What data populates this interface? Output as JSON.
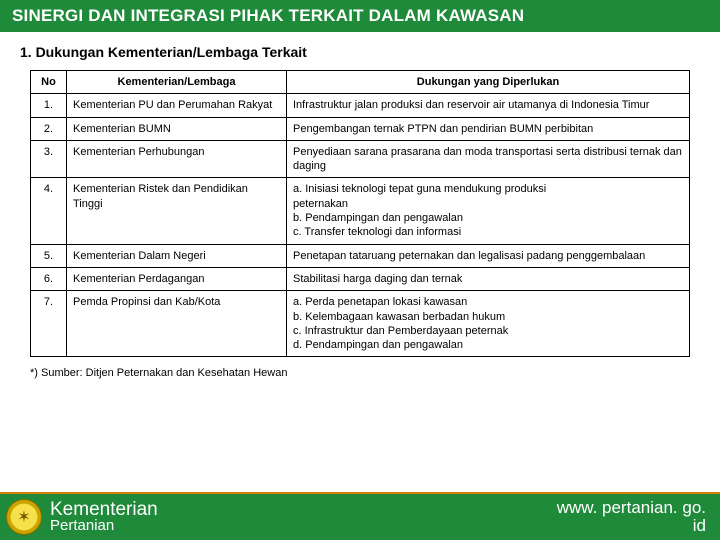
{
  "colors": {
    "header_bg": "#1e8a3a",
    "header_text": "#ffffff",
    "footer_bg": "#1e8a3a",
    "footer_border_top": "#d98200",
    "table_border": "#000000"
  },
  "header": {
    "title": "SINERGI DAN INTEGRASI PIHAK TERKAIT DALAM KAWASAN"
  },
  "section": {
    "title": "1.  Dukungan Kementerian/Lembaga Terkait"
  },
  "table": {
    "columns": {
      "no": "No",
      "kl": "Kementerian/Lembaga",
      "dukungan": "Dukungan yang Diperlukan"
    },
    "rows": [
      {
        "no": "1.",
        "kl": "Kementerian PU dan Perumahan Rakyat",
        "dukungan": "Infrastruktur  jalan produksi dan reservoir air utamanya di Indonesia Timur"
      },
      {
        "no": "2.",
        "kl": "Kementerian BUMN",
        "dukungan": "Pengembangan ternak PTPN dan pendirian BUMN perbibitan"
      },
      {
        "no": "3.",
        "kl": "Kementerian Perhubungan",
        "dukungan": "Penyediaan sarana prasarana dan moda transportasi serta distribusi ternak dan daging"
      },
      {
        "no": "4.",
        "kl": "Kementerian Ristek dan Pendidikan Tinggi",
        "dukungan": "a. Inisiasi teknologi tepat guna mendukung produksi\n    peternakan\nb. Pendampingan dan pengawalan\nc. Transfer teknologi dan informasi"
      },
      {
        "no": "5.",
        "kl": "Kementerian Dalam Negeri",
        "dukungan": "Penetapan tataruang peternakan dan legalisasi padang penggembalaan"
      },
      {
        "no": "6.",
        "kl": "Kementerian Perdagangan",
        "dukungan": "Stabilitasi harga daging dan ternak"
      },
      {
        "no": "7.",
        "kl": "Pemda Propinsi dan Kab/Kota",
        "dukungan": "a. Perda penetapan lokasi kawasan\nb. Kelembagaan kawasan berbadan hukum\nc. Infrastruktur dan Pemberdayaan peternak\nd. Pendampingan dan pengawalan"
      }
    ]
  },
  "source": "*) Sumber: Ditjen Peternakan dan Kesehatan Hewan",
  "footer": {
    "org_line1": "Kementerian",
    "org_line2": "Pertanian",
    "url_line1": "www. pertanian. go.",
    "url_line2": "id"
  }
}
